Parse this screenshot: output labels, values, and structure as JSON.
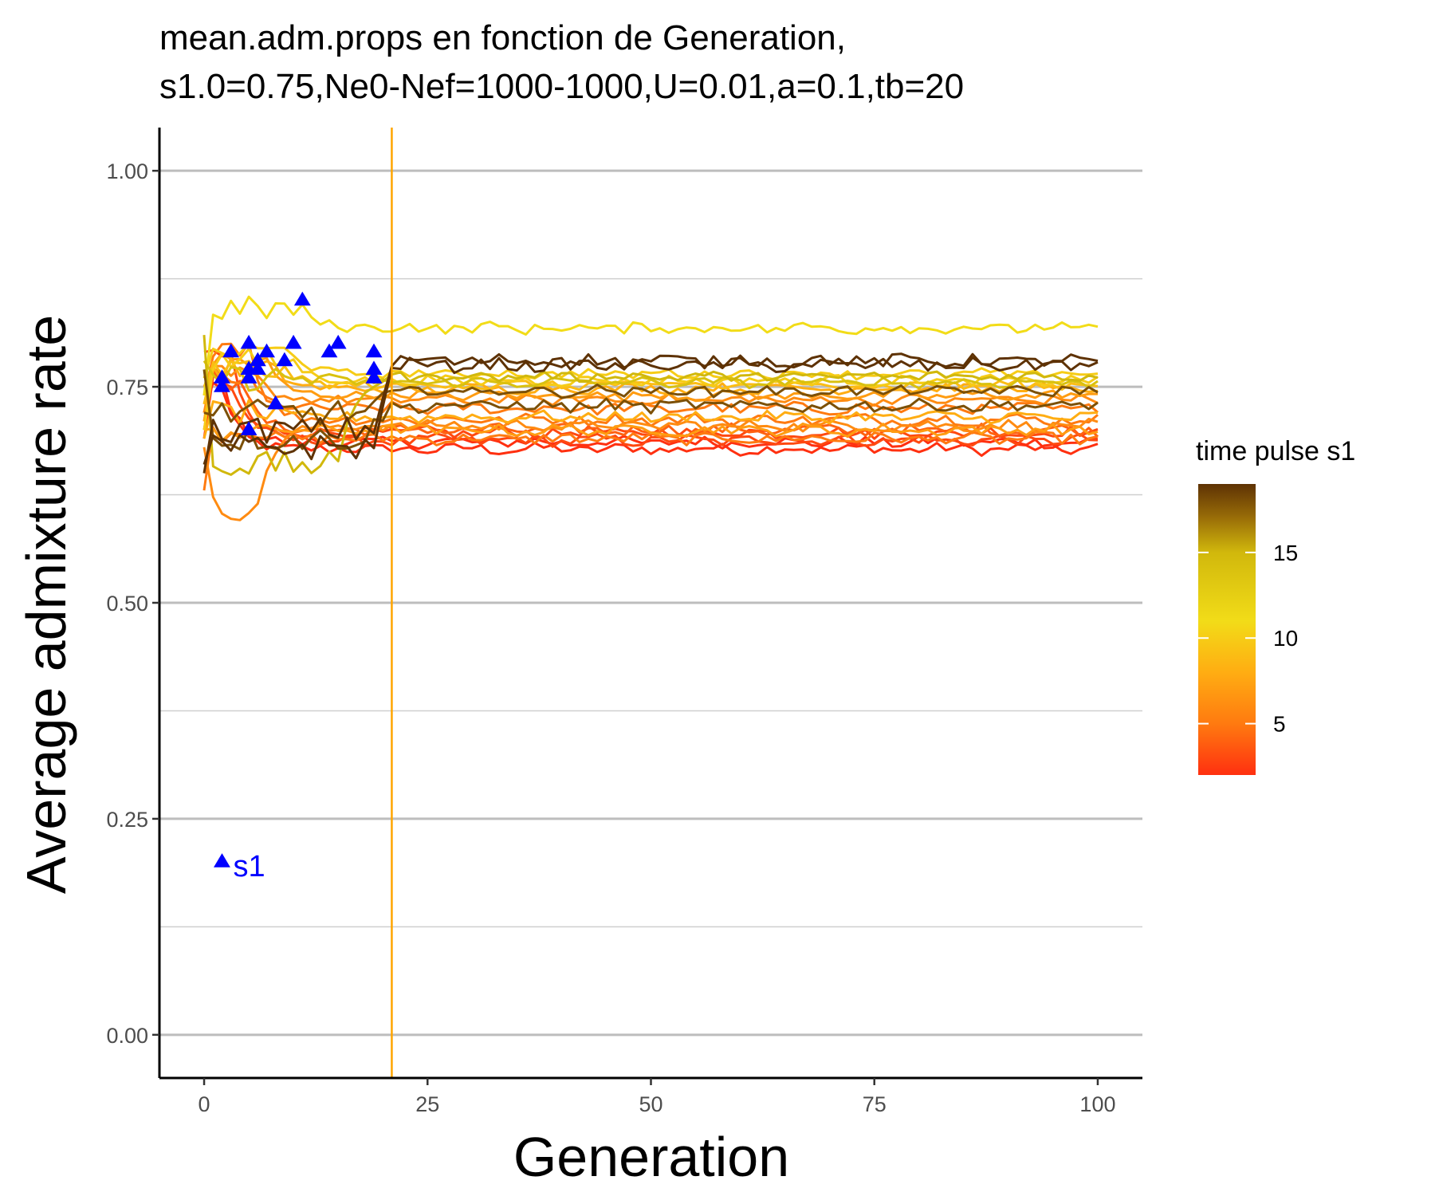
{
  "chart_data": {
    "type": "line",
    "title_lines": [
      "mean.adm.props en fonction de Generation,",
      "s1.0=0.75,Ne0-Nef=1000-1000,U=0.01,a=0.1,tb=20"
    ],
    "xlabel": "Generation",
    "ylabel": "Average admixture rate",
    "xlim": [
      -5,
      105
    ],
    "ylim": [
      -0.05,
      1.05
    ],
    "x_ticks": [
      0,
      25,
      50,
      75,
      100
    ],
    "x_tick_labels": [
      "0",
      "25",
      "50",
      "75",
      "100"
    ],
    "y_ticks": [
      0,
      0.25,
      0.5,
      0.75,
      1
    ],
    "y_tick_labels": [
      "0.00",
      "0.25",
      "0.50",
      "0.75",
      "1.00"
    ],
    "y_minor_ticks": [
      0.125,
      0.375,
      0.625,
      0.875
    ],
    "grid": "horizontal",
    "vline": {
      "x": 21,
      "color": "#ffa500"
    },
    "colorbar": {
      "title": "time pulse s1",
      "min": 2,
      "max": 19,
      "ticks": [
        5,
        10,
        15
      ],
      "tick_labels": [
        "5",
        "10",
        "15"
      ],
      "stops": [
        {
          "value": 2,
          "color": "#ff3010"
        },
        {
          "value": 5,
          "color": "#ff7a10"
        },
        {
          "value": 8,
          "color": "#ffad12"
        },
        {
          "value": 11,
          "color": "#f2dc18"
        },
        {
          "value": 15,
          "color": "#d1b80c"
        },
        {
          "value": 17,
          "color": "#9a6e08"
        },
        {
          "value": 19,
          "color": "#5e3204"
        }
      ]
    },
    "series_shapes": [
      {
        "pulse": 19,
        "start": 0.65,
        "level": 0.78,
        "init_level": 0.7,
        "noise": 0.007
      },
      {
        "pulse": 19,
        "start": 0.66,
        "level": 0.775,
        "init_level": 0.68,
        "noise": 0.007
      },
      {
        "pulse": 18,
        "start": 0.77,
        "level": 0.728,
        "init_level": 0.69,
        "noise": 0.007
      },
      {
        "pulse": 18,
        "start": 0.72,
        "level": 0.745,
        "init_level": 0.72,
        "noise": 0.006
      },
      {
        "pulse": 15,
        "start": 0.81,
        "level": 0.762,
        "init_level": 0.66,
        "noise": 0.005
      },
      {
        "pulse": 14,
        "start": 0.78,
        "level": 0.755,
        "init_level": 0.76,
        "noise": 0.005
      },
      {
        "pulse": 11,
        "start": 0.74,
        "level": 0.818,
        "init_level": 0.84,
        "noise": 0.006
      },
      {
        "pulse": 10,
        "start": 0.7,
        "level": 0.757,
        "init_level": 0.78,
        "noise": 0.005
      },
      {
        "pulse": 10,
        "start": 0.76,
        "level": 0.765,
        "init_level": 0.79,
        "noise": 0.005
      },
      {
        "pulse": 9,
        "start": 0.73,
        "level": 0.752,
        "init_level": 0.77,
        "noise": 0.005
      },
      {
        "pulse": 8,
        "start": 0.71,
        "level": 0.748,
        "init_level": 0.77,
        "noise": 0.005
      },
      {
        "pulse": 8,
        "start": 0.69,
        "level": 0.715,
        "init_level": 0.72,
        "noise": 0.006
      },
      {
        "pulse": 7,
        "start": 0.75,
        "level": 0.74,
        "init_level": 0.78,
        "noise": 0.005
      },
      {
        "pulse": 7,
        "start": 0.7,
        "level": 0.7,
        "init_level": 0.7,
        "noise": 0.006
      },
      {
        "pulse": 6,
        "start": 0.68,
        "level": 0.705,
        "init_level": 0.61,
        "noise": 0.006
      },
      {
        "pulse": 6,
        "start": 0.72,
        "level": 0.735,
        "init_level": 0.76,
        "noise": 0.005
      },
      {
        "pulse": 5,
        "start": 0.63,
        "level": 0.69,
        "init_level": 0.7,
        "noise": 0.006
      },
      {
        "pulse": 5,
        "start": 0.71,
        "level": 0.725,
        "init_level": 0.76,
        "noise": 0.006
      },
      {
        "pulse": 5,
        "start": 0.74,
        "level": 0.712,
        "init_level": 0.8,
        "noise": 0.006
      },
      {
        "pulse": 4,
        "start": 0.73,
        "level": 0.7,
        "init_level": 0.76,
        "noise": 0.006
      },
      {
        "pulse": 3,
        "start": 0.79,
        "level": 0.688,
        "init_level": 0.79,
        "noise": 0.006
      },
      {
        "pulse": 3,
        "start": 0.7,
        "level": 0.697,
        "init_level": 0.75,
        "noise": 0.006
      },
      {
        "pulse": 2,
        "start": 0.72,
        "level": 0.678,
        "init_level": 0.75,
        "noise": 0.006
      },
      {
        "pulse": 2,
        "start": 0.69,
        "level": 0.686,
        "init_level": 0.76,
        "noise": 0.006
      }
    ],
    "pulse_markers": {
      "color": "#0000ff",
      "points": [
        {
          "x": 2,
          "y": 0.75
        },
        {
          "x": 2,
          "y": 0.76
        },
        {
          "x": 3,
          "y": 0.79
        },
        {
          "x": 5,
          "y": 0.7
        },
        {
          "x": 5,
          "y": 0.76
        },
        {
          "x": 5,
          "y": 0.77
        },
        {
          "x": 5,
          "y": 0.8
        },
        {
          "x": 6,
          "y": 0.77
        },
        {
          "x": 6,
          "y": 0.78
        },
        {
          "x": 7,
          "y": 0.79
        },
        {
          "x": 8,
          "y": 0.73
        },
        {
          "x": 9,
          "y": 0.78
        },
        {
          "x": 10,
          "y": 0.8
        },
        {
          "x": 11,
          "y": 0.85
        },
        {
          "x": 14,
          "y": 0.79
        },
        {
          "x": 15,
          "y": 0.8
        },
        {
          "x": 19,
          "y": 0.76
        },
        {
          "x": 19,
          "y": 0.77
        },
        {
          "x": 19,
          "y": 0.79
        }
      ]
    },
    "annotation": {
      "text": "s1",
      "x": 2,
      "y": 0.2,
      "color": "#0000ff"
    }
  }
}
